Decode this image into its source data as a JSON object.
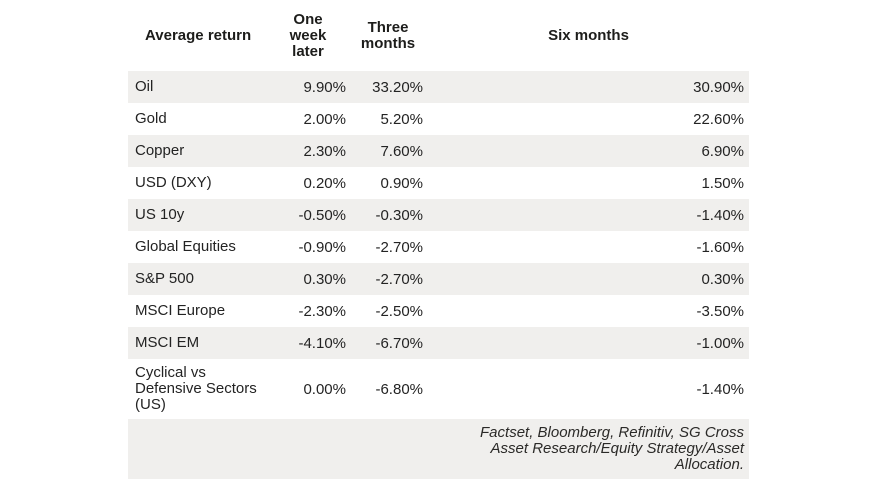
{
  "chart_data": {
    "type": "table",
    "title": "Average return",
    "columns": [
      "Average return",
      "One week later",
      "Three months",
      "Six months"
    ],
    "rows": [
      {
        "label": "Oil",
        "values": [
          "9.90%",
          "33.20%",
          "30.90%"
        ]
      },
      {
        "label": "Gold",
        "values": [
          "2.00%",
          "5.20%",
          "22.60%"
        ]
      },
      {
        "label": "Copper",
        "values": [
          "2.30%",
          "7.60%",
          "6.90%"
        ]
      },
      {
        "label": "USD (DXY)",
        "values": [
          "0.20%",
          "0.90%",
          "1.50%"
        ]
      },
      {
        "label": "US 10y",
        "values": [
          "-0.50%",
          "-0.30%",
          "-1.40%"
        ]
      },
      {
        "label": "Global Equities",
        "values": [
          "-0.90%",
          "-2.70%",
          "-1.60%"
        ]
      },
      {
        "label": "S&P 500",
        "values": [
          "0.30%",
          "-2.70%",
          "0.30%"
        ]
      },
      {
        "label": "MSCI Europe",
        "values": [
          "-2.30%",
          "-2.50%",
          "-3.50%"
        ]
      },
      {
        "label": "MSCI EM",
        "values": [
          "-4.10%",
          "-6.70%",
          "-1.00%"
        ]
      },
      {
        "label": "Cyclical vs Defensive Sectors (US)",
        "values": [
          "0.00%",
          "-6.80%",
          "-1.40%"
        ]
      }
    ],
    "source": "Factset, Bloomberg, Refinitiv, SG Cross Asset Research/Equity Strategy/Asset Allocation.",
    "layout": {
      "stripe_rows": "odd",
      "legend": "none",
      "grid": "off"
    }
  },
  "display": {
    "headers": [
      "Average return",
      "One\nweek\nlater",
      "Three\nmonths",
      "Six months"
    ],
    "row_labels": [
      "Oil",
      "Gold",
      "Copper",
      "USD (DXY)",
      "US 10y",
      "Global Equities",
      "S&P 500",
      "MSCI Europe",
      "MSCI EM",
      "Cyclical vs\nDefensive Sectors\n(US)"
    ],
    "source_note": "Factset, Bloomberg, Refinitiv, SG Cross\nAsset Research/Equity Strategy/Asset\nAllocation."
  },
  "colors": {
    "background": "#ffffff",
    "row_stripe": "#f0efed",
    "text": "#232323",
    "header_text": "#1d1d1b"
  }
}
